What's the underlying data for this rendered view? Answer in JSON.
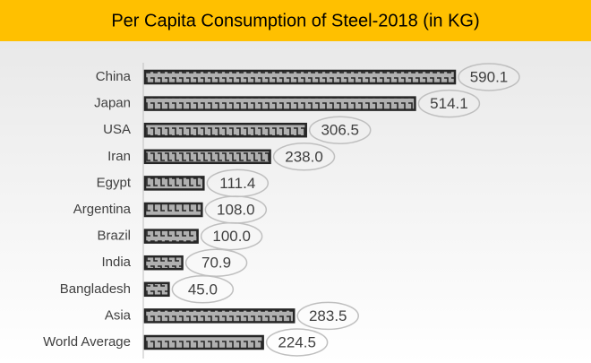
{
  "chart_data": {
    "type": "bar",
    "orientation": "horizontal",
    "title": "Per Capita Consumption of Steel-2018 (in KG)",
    "categories": [
      "China",
      "Japan",
      "USA",
      "Iran",
      "Egypt",
      "Argentina",
      "Brazil",
      "India",
      "Bangladesh",
      "Asia",
      "World Average"
    ],
    "values": [
      590.1,
      514.1,
      306.5,
      238.0,
      111.4,
      108.0,
      100.0,
      70.9,
      45.0,
      283.5,
      224.5
    ],
    "value_labels": [
      "590.1",
      "514.1",
      "306.5",
      "238.0",
      "111.4",
      "108.0",
      "100.0",
      "70.9",
      "45.0",
      "283.5",
      "224.5"
    ],
    "color": "#262626"
  }
}
